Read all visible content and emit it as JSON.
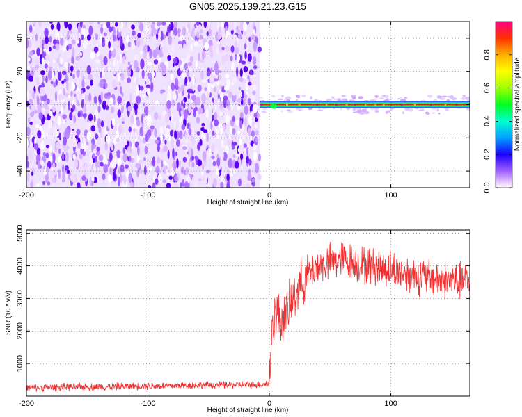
{
  "figure": {
    "title": "GN05.2025.139.21.23.G15"
  },
  "chart_data": [
    {
      "type": "heatmap",
      "xlabel": "Height of straight line (km)",
      "ylabel": "Frequency (Hz)",
      "xlim": [
        -200,
        165
      ],
      "ylim": [
        -50,
        50
      ],
      "x_ticks": [
        "-200",
        "-100",
        "0",
        "100"
      ],
      "y_ticks": [
        "-40",
        "-20",
        "0",
        "20",
        "40"
      ],
      "colorbar": {
        "label": "Normalized spectral amplitude",
        "range": [
          0,
          1
        ],
        "ticks": [
          "0.0",
          "0.2",
          "0.4",
          "0.6",
          "0.8"
        ]
      },
      "regions": [
        {
          "x_range": [
            -200,
            -8
          ],
          "description_value": "broadband",
          "amplitude_range": [
            0.0,
            0.2
          ]
        },
        {
          "x_range": [
            -8,
            165
          ],
          "frequency_center": 0,
          "amplitude_peak": 1.0,
          "amplitude_sidelobe": 0.15
        }
      ],
      "grid": true
    },
    {
      "type": "line",
      "xlabel": "Height of straight line (km)",
      "ylabel": "SNR (10 * v/v)",
      "xlim": [
        -200,
        165
      ],
      "ylim": [
        0,
        5100
      ],
      "x_ticks": [
        "-200",
        "-100",
        "0",
        "100"
      ],
      "y_ticks": [
        "1000",
        "2000",
        "3000",
        "4000",
        "5000"
      ],
      "line_color": "#f03030",
      "series": [
        {
          "x": [
            -200,
            -180,
            -160,
            -140,
            -120,
            -100,
            -80,
            -60,
            -40,
            -20,
            -5,
            0,
            2,
            5,
            10,
            15,
            20,
            25,
            30,
            40,
            50,
            60,
            70,
            80,
            100,
            120,
            140,
            160,
            165
          ],
          "y": [
            250,
            270,
            280,
            290,
            300,
            310,
            320,
            330,
            340,
            350,
            360,
            400,
            2000,
            2600,
            2300,
            2600,
            3000,
            3400,
            3700,
            4000,
            4100,
            4200,
            4100,
            4000,
            3900,
            3700,
            3600,
            3500,
            3500
          ]
        }
      ],
      "grid": true
    }
  ]
}
